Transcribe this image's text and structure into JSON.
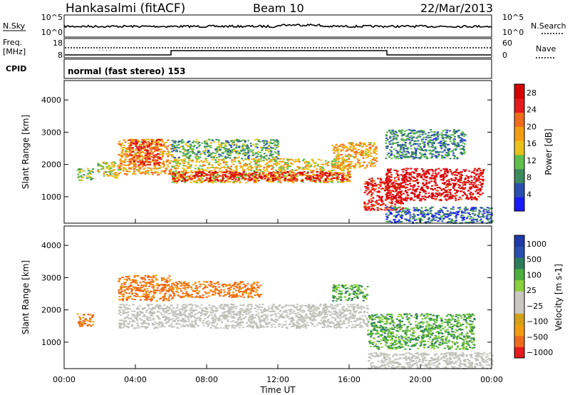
{
  "header": {
    "station": "Hankasalmi (fitACF)",
    "beam": "Beam 10",
    "date": "22/Mar/2013"
  },
  "strips": {
    "nsky_label": "N.Sky",
    "nsky_ticks": [
      "10^5",
      "10^0"
    ],
    "nsearch_label": "N.Search",
    "nsearch_ticks": [
      "10^5",
      "10^0"
    ],
    "freq_label_1": "Freq.",
    "freq_label_2": "[MHz]",
    "freq_ticks": [
      "18",
      "8"
    ],
    "nave_label": "Nave",
    "nave_ticks": [
      "60",
      "0"
    ],
    "cpid_label": "CPID",
    "cpid_text": "normal (fast stereo) 153"
  },
  "colors": {
    "power": [
      "#1a1aff",
      "#2b4fb0",
      "#3d8a5e",
      "#5fbf4a",
      "#e8c21a",
      "#f39c12",
      "#f06a1c",
      "#e41a1c",
      "#d40000"
    ],
    "velocity": [
      "#e41a1c",
      "#f06a1c",
      "#f39c12",
      "#d4a016",
      "#c8c8c0",
      "#c8c8c0",
      "#8ccf3c",
      "#4caf3c",
      "#2e7d5a",
      "#2b4fb0",
      "#1f3aa8"
    ],
    "velocity_gray": "#c8c8c0"
  },
  "chart_data": [
    {
      "type": "heatmap",
      "name": "Power",
      "xlabel": "Time UT",
      "ylabel": "Slant Range [km]",
      "xlim": [
        0,
        24
      ],
      "ylim": [
        180,
        4600
      ],
      "xticks": [
        "00:00",
        "04:00",
        "08:00",
        "12:00",
        "16:00",
        "20:00",
        "00:00"
      ],
      "yticks": [
        1000,
        2000,
        3000,
        4000
      ],
      "colorbar_label": "Power [dB]",
      "colorbar_ticks": [
        4,
        8,
        12,
        16,
        20,
        24,
        28
      ],
      "colorbar_range": [
        0,
        30
      ],
      "regions": [
        {
          "t0": 0.7,
          "t1": 1.6,
          "r0": 1500,
          "r1": 1900,
          "level": 12
        },
        {
          "t0": 1.8,
          "t1": 3.0,
          "r0": 1600,
          "r1": 2100,
          "level": 14
        },
        {
          "t0": 3.0,
          "t1": 6.0,
          "r0": 1700,
          "r1": 2800,
          "level": 18
        },
        {
          "t0": 3.6,
          "t1": 5.4,
          "r0": 2000,
          "r1": 2800,
          "level": 24
        },
        {
          "t0": 6.0,
          "t1": 16.0,
          "r0": 1450,
          "r1": 2200,
          "level": 16
        },
        {
          "t0": 6.0,
          "t1": 16.0,
          "r0": 1500,
          "r1": 1800,
          "level": 26
        },
        {
          "t0": 6.0,
          "t1": 12.0,
          "r0": 2200,
          "r1": 2800,
          "level": 10
        },
        {
          "t0": 15.0,
          "t1": 17.5,
          "r0": 1900,
          "r1": 2700,
          "level": 18
        },
        {
          "t0": 16.8,
          "t1": 19.0,
          "r0": 600,
          "r1": 1600,
          "level": 26
        },
        {
          "t0": 18.0,
          "t1": 23.5,
          "r0": 900,
          "r1": 1900,
          "level": 28
        },
        {
          "t0": 18.0,
          "t1": 22.5,
          "r0": 2200,
          "r1": 3100,
          "level": 8
        },
        {
          "t0": 18.0,
          "t1": 24.0,
          "r0": 200,
          "r1": 700,
          "level": 6
        }
      ]
    },
    {
      "type": "heatmap",
      "name": "Velocity",
      "xlabel": "Time UT",
      "ylabel": "Slant Range [km]",
      "xlim": [
        0,
        24
      ],
      "ylim": [
        180,
        4600
      ],
      "xticks": [
        "00:00",
        "04:00",
        "08:00",
        "12:00",
        "16:00",
        "20:00",
        "00:00"
      ],
      "yticks": [
        1000,
        2000,
        3000,
        4000
      ],
      "colorbar_label": "Velocity [m s-1]",
      "colorbar_ticks": [
        "1000",
        "500",
        "100",
        "25",
        "−25",
        "−100",
        "−500",
        "−1000"
      ],
      "regions": [
        {
          "t0": 0.7,
          "t1": 1.6,
          "r0": 1500,
          "r1": 1900,
          "class": "-500"
        },
        {
          "t0": 3.0,
          "t1": 6.0,
          "r0": 2300,
          "r1": 3100,
          "class": "-500"
        },
        {
          "t0": 3.0,
          "t1": 17.0,
          "r0": 1450,
          "r1": 2200,
          "class": "0"
        },
        {
          "t0": 6.0,
          "t1": 11.0,
          "r0": 2400,
          "r1": 2900,
          "class": "-500"
        },
        {
          "t0": 15.0,
          "t1": 17.0,
          "r0": 2300,
          "r1": 2800,
          "class": "500"
        },
        {
          "t0": 17.0,
          "t1": 23.0,
          "r0": 800,
          "r1": 1900,
          "class": "500"
        },
        {
          "t0": 17.0,
          "t1": 24.0,
          "r0": 200,
          "r1": 700,
          "class": "0"
        }
      ]
    }
  ]
}
